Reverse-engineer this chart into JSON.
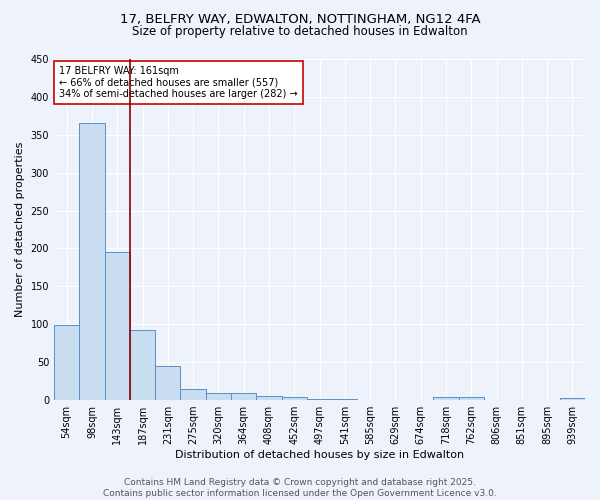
{
  "title": "17, BELFRY WAY, EDWALTON, NOTTINGHAM, NG12 4FA",
  "subtitle": "Size of property relative to detached houses in Edwalton",
  "xlabel": "Distribution of detached houses by size in Edwalton",
  "ylabel": "Number of detached properties",
  "categories": [
    "54sqm",
    "98sqm",
    "143sqm",
    "187sqm",
    "231sqm",
    "275sqm",
    "320sqm",
    "364sqm",
    "408sqm",
    "452sqm",
    "497sqm",
    "541sqm",
    "585sqm",
    "629sqm",
    "674sqm",
    "718sqm",
    "762sqm",
    "806sqm",
    "851sqm",
    "895sqm",
    "939sqm"
  ],
  "values": [
    99,
    365,
    196,
    93,
    45,
    15,
    10,
    10,
    6,
    4,
    1,
    1,
    0,
    0,
    0,
    4,
    4,
    0,
    0,
    0,
    3
  ],
  "bar_color": "#c9ddf0",
  "bar_edge_color": "#5b8fc9",
  "red_line_x": 2.5,
  "red_line_color": "#8b0000",
  "annotation_text": "17 BELFRY WAY: 161sqm\n← 66% of detached houses are smaller (557)\n34% of semi-detached houses are larger (282) →",
  "annotation_box_color": "#ffffff",
  "annotation_box_edge": "#cc0000",
  "ylim": [
    0,
    450
  ],
  "yticks": [
    0,
    50,
    100,
    150,
    200,
    250,
    300,
    350,
    400,
    450
  ],
  "footer_text": "Contains HM Land Registry data © Crown copyright and database right 2025.\nContains public sector information licensed under the Open Government Licence v3.0.",
  "bg_color": "#eef2fa",
  "grid_color": "#ffffff",
  "title_fontsize": 9.5,
  "subtitle_fontsize": 8.5,
  "axis_label_fontsize": 8,
  "tick_fontsize": 7,
  "annotation_fontsize": 7,
  "footer_fontsize": 6.5
}
